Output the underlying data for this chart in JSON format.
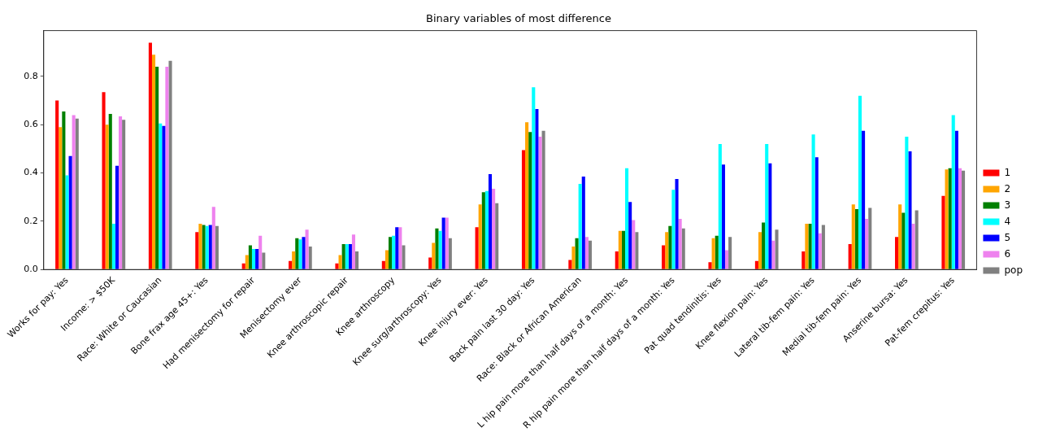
{
  "chart_data": {
    "type": "bar",
    "title": "Binary variables of most difference",
    "categories": [
      "Works for pay: Yes",
      "Income: > $50K",
      "Race: White or Caucasian",
      "Bone frax age 45+: Yes",
      "Had menisectomy for repair",
      "Menisectomy ever",
      "Knee arthroscopic repair",
      "Knee arthroscopy",
      "Knee surg/arthroscopy: Yes",
      "Knee injury ever: Yes",
      "Back pain last 30 day: Yes",
      "Race: Black or African American",
      "L hip pain more than half days of a month: Yes",
      "R hip pain more than half days of a month: Yes",
      "Pat quad tendinitis: Yes",
      "Knee flexion pain: Yes",
      "Lateral tib-fem pain: Yes",
      "Medial tib-fem pain: Yes",
      "Anserine bursa: Yes",
      "Pat-fem crepitus: Yes"
    ],
    "series": [
      {
        "name": "1",
        "color": "#ff0000",
        "values": [
          0.7,
          0.735,
          0.94,
          0.155,
          0.025,
          0.035,
          0.025,
          0.035,
          0.05,
          0.175,
          0.495,
          0.04,
          0.075,
          0.1,
          0.03,
          0.035,
          0.075,
          0.105,
          0.135,
          0.305
        ]
      },
      {
        "name": "2",
        "color": "#ffa500",
        "values": [
          0.59,
          0.6,
          0.89,
          0.19,
          0.06,
          0.075,
          0.06,
          0.08,
          0.11,
          0.27,
          0.61,
          0.095,
          0.16,
          0.155,
          0.13,
          0.155,
          0.19,
          0.27,
          0.27,
          0.415
        ]
      },
      {
        "name": "3",
        "color": "#008000",
        "values": [
          0.655,
          0.645,
          0.84,
          0.185,
          0.1,
          0.13,
          0.105,
          0.135,
          0.17,
          0.32,
          0.57,
          0.13,
          0.16,
          0.18,
          0.14,
          0.195,
          0.19,
          0.25,
          0.235,
          0.42
        ]
      },
      {
        "name": "4",
        "color": "#00ffff",
        "values": [
          0.39,
          0.19,
          0.605,
          0.18,
          0.085,
          0.125,
          0.105,
          0.14,
          0.16,
          0.325,
          0.755,
          0.355,
          0.42,
          0.33,
          0.52,
          0.52,
          0.56,
          0.72,
          0.55,
          0.64
        ]
      },
      {
        "name": "5",
        "color": "#0000ff",
        "values": [
          0.47,
          0.43,
          0.595,
          0.185,
          0.085,
          0.135,
          0.105,
          0.175,
          0.215,
          0.395,
          0.665,
          0.385,
          0.28,
          0.375,
          0.435,
          0.44,
          0.465,
          0.575,
          0.49,
          0.575
        ]
      },
      {
        "name": "6",
        "color": "#ee82ee",
        "values": [
          0.64,
          0.635,
          0.84,
          0.26,
          0.14,
          0.165,
          0.145,
          0.175,
          0.215,
          0.335,
          0.55,
          0.135,
          0.205,
          0.21,
          0.08,
          0.12,
          0.15,
          0.21,
          0.19,
          0.42
        ]
      },
      {
        "name": "pop",
        "color": "#808080",
        "values": [
          0.625,
          0.62,
          0.865,
          0.18,
          0.07,
          0.095,
          0.075,
          0.1,
          0.13,
          0.275,
          0.575,
          0.12,
          0.155,
          0.17,
          0.135,
          0.165,
          0.185,
          0.255,
          0.245,
          0.41
        ]
      }
    ],
    "ylim": [
      0,
      0.99
    ],
    "yticks": [
      {
        "value": 0,
        "label": "0.0"
      },
      {
        "value": 0.2,
        "label": "0.2"
      },
      {
        "value": 0.4,
        "label": "0.4"
      },
      {
        "value": 0.6,
        "label": "0.6"
      },
      {
        "value": 0.8,
        "label": "0.8"
      }
    ],
    "grid": false,
    "legend": "right"
  }
}
